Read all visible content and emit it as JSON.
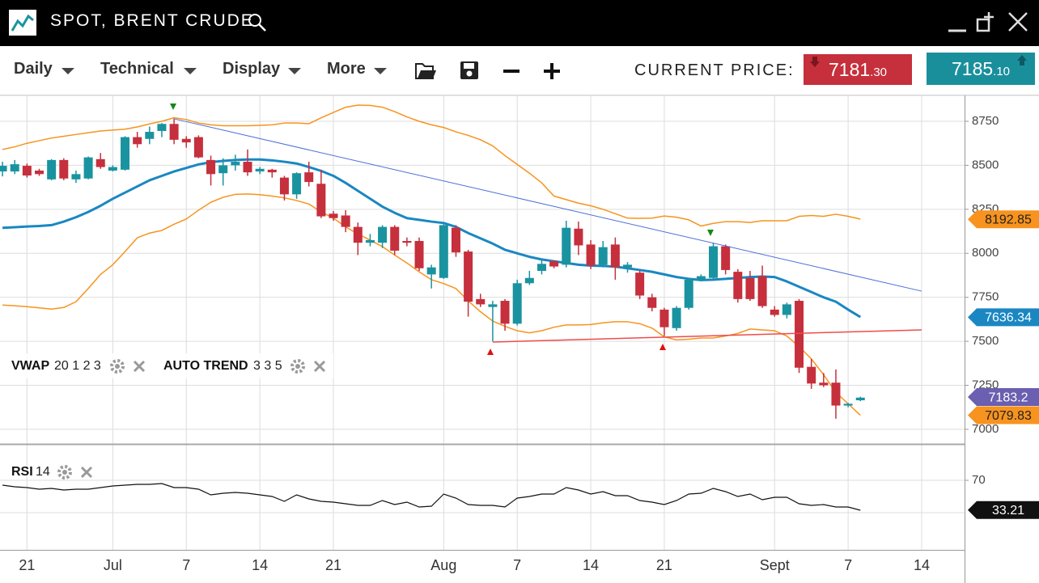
{
  "header": {
    "title": "SPOT, BRENT CRUDE"
  },
  "toolbar": {
    "menus": [
      "Daily",
      "Technical",
      "Display",
      "More"
    ],
    "current_price_label": "CURRENT PRICE:",
    "bid": {
      "integer": "7181",
      "decimal": ".30"
    },
    "ask": {
      "integer": "7185",
      "decimal": ".10"
    }
  },
  "chart_data": [
    {
      "type": "candlestick",
      "categories": [
        null,
        null,
        "21",
        null,
        null,
        null,
        null,
        null,
        null,
        "Jul",
        null,
        null,
        null,
        null,
        null,
        "7",
        null,
        null,
        null,
        null,
        null,
        "14",
        null,
        null,
        null,
        null,
        null,
        "21",
        null,
        null,
        null,
        null,
        null,
        null,
        null,
        null,
        "Aug",
        null,
        null,
        null,
        null,
        null,
        "7",
        null,
        null,
        null,
        null,
        null,
        "14",
        null,
        null,
        null,
        null,
        null,
        "21",
        null,
        null,
        null,
        null,
        null,
        null,
        null,
        null,
        "Sept",
        null,
        null,
        null,
        null,
        null,
        "7",
        null,
        null,
        null,
        null,
        null,
        "14",
        null,
        null,
        null
      ],
      "open": [
        8465,
        8465,
        8497,
        8470,
        8420,
        8530,
        8420,
        8425,
        8535,
        8470,
        8475,
        8660,
        8650,
        8695,
        8735,
        8650,
        8660,
        8530,
        8455,
        8500,
        8520,
        8465,
        8475,
        8430,
        8335,
        8460,
        8395,
        8225,
        8215,
        8150,
        8060,
        8060,
        8150,
        8070,
        8070,
        7880,
        7860,
        8145,
        8010,
        7740,
        7695,
        7730,
        7600,
        7830,
        7900,
        7955,
        7935,
        8140,
        8050,
        7935,
        8050,
        7920,
        7890,
        7750,
        7680,
        7575,
        7690,
        7850,
        7860,
        8040,
        7895,
        7860,
        7870,
        7680,
        7650,
        7730,
        7355,
        7265,
        7265,
        7135,
        7165,
        null,
        null,
        null,
        null,
        null,
        null,
        null,
        null
      ],
      "high": [
        8520,
        8530,
        8510,
        8480,
        8535,
        8540,
        8470,
        8550,
        8570,
        8500,
        8665,
        8690,
        8720,
        8740,
        8765,
        8665,
        8670,
        8555,
        8540,
        8560,
        8590,
        8490,
        8480,
        8440,
        8460,
        8520,
        8475,
        8240,
        8245,
        8175,
        8110,
        8160,
        8160,
        8090,
        8090,
        7935,
        8165,
        8160,
        8020,
        7770,
        7730,
        7740,
        7850,
        7900,
        7960,
        7960,
        8185,
        8180,
        8075,
        8070,
        8090,
        7950,
        7900,
        7770,
        7690,
        7700,
        7860,
        7880,
        8060,
        8050,
        7910,
        7900,
        7930,
        7700,
        7720,
        7740,
        7400,
        7320,
        7340,
        7150,
        7185,
        null,
        null,
        null,
        null,
        null,
        null,
        null,
        null
      ],
      "low": [
        8437,
        8450,
        8430,
        8440,
        8415,
        8415,
        8400,
        8420,
        8480,
        8465,
        8470,
        8600,
        8620,
        8660,
        8620,
        8600,
        8540,
        8385,
        8385,
        8470,
        8440,
        8450,
        8430,
        8300,
        8310,
        8380,
        8200,
        8185,
        8120,
        7990,
        8040,
        8030,
        7990,
        8040,
        7900,
        7800,
        7855,
        7980,
        7640,
        7695,
        7500,
        7560,
        7590,
        7820,
        7880,
        7915,
        7920,
        7990,
        7910,
        7920,
        7850,
        7890,
        7740,
        7670,
        7530,
        7560,
        7680,
        7840,
        7850,
        7880,
        7720,
        7730,
        7690,
        7640,
        7630,
        7320,
        7230,
        7240,
        7060,
        7125,
        7160,
        null,
        null,
        null,
        null,
        null,
        null,
        null,
        null
      ],
      "close": [
        8497,
        8506,
        8442,
        8450,
        8530,
        8425,
        8450,
        8545,
        8490,
        8490,
        8660,
        8620,
        8690,
        8735,
        8645,
        8630,
        8545,
        8450,
        8500,
        8520,
        8460,
        8480,
        8460,
        8335,
        8455,
        8405,
        8210,
        8200,
        8150,
        8060,
        8075,
        8150,
        8015,
        8060,
        7915,
        7920,
        8160,
        8005,
        7725,
        7710,
        7710,
        7600,
        7830,
        7860,
        7940,
        7925,
        8145,
        8045,
        7930,
        8035,
        7920,
        7935,
        7760,
        7690,
        7580,
        7690,
        7850,
        7870,
        8040,
        7905,
        7740,
        7740,
        7700,
        7650,
        7710,
        7350,
        7260,
        7250,
        7135,
        7145,
        7180,
        null,
        null,
        null,
        null,
        null,
        null,
        null,
        null
      ],
      "up_color": "#1a93a0",
      "down_color": "#c62f3c",
      "series": [
        {
          "color": "#1a87c2",
          "width": 3,
          "values": [
            8145,
            8148,
            8152,
            8155,
            8160,
            8180,
            8205,
            8235,
            8270,
            8310,
            8345,
            8380,
            8415,
            8440,
            8465,
            8485,
            8505,
            8518,
            8525,
            8530,
            8533,
            8533,
            8528,
            8520,
            8510,
            8490,
            8468,
            8440,
            8400,
            8355,
            8310,
            8265,
            8230,
            8200,
            8190,
            8180,
            8172,
            8150,
            8115,
            8085,
            8055,
            8020,
            8000,
            7980,
            7965,
            7955,
            7945,
            7935,
            7930,
            7928,
            7924,
            7915,
            7905,
            7895,
            7880,
            7865,
            7855,
            7848,
            7850,
            7855,
            7860,
            7865,
            7868,
            7865,
            7840,
            7810,
            7780,
            7750,
            7725,
            7680,
            7638,
            null,
            null,
            null,
            null,
            null,
            null,
            null,
            null
          ]
        },
        {
          "color": "#f7931e",
          "width": 1.5,
          "values": [
            8590,
            8605,
            8625,
            8640,
            8655,
            8665,
            8675,
            8685,
            8695,
            8700,
            8705,
            8718,
            8735,
            8750,
            8770,
            8760,
            8740,
            8730,
            8725,
            8725,
            8725,
            8727,
            8730,
            8740,
            8740,
            8736,
            8770,
            8800,
            8830,
            8842,
            8840,
            8830,
            8805,
            8775,
            8750,
            8730,
            8715,
            8690,
            8670,
            8645,
            8610,
            8555,
            8505,
            8455,
            8400,
            8325,
            8305,
            8285,
            8270,
            8250,
            8225,
            8200,
            8199,
            8200,
            8212,
            8205,
            8190,
            8155,
            8170,
            8180,
            8180,
            8175,
            8185,
            8185,
            8185,
            8210,
            8215,
            8210,
            8222,
            8210,
            8194,
            null,
            null,
            null,
            null,
            null,
            null,
            null,
            null
          ]
        },
        {
          "color": "#f7931e",
          "width": 1.5,
          "values": [
            7706,
            7702,
            7697,
            7690,
            7683,
            7692,
            7725,
            7800,
            7880,
            7935,
            8010,
            8088,
            8115,
            8130,
            8165,
            8195,
            8245,
            8290,
            8318,
            8335,
            8337,
            8333,
            8325,
            8315,
            8300,
            8280,
            8235,
            8200,
            8150,
            8110,
            8075,
            8038,
            7990,
            7945,
            7895,
            7850,
            7828,
            7800,
            7730,
            7668,
            7615,
            7585,
            7560,
            7548,
            7560,
            7580,
            7593,
            7593,
            7595,
            7605,
            7611,
            7611,
            7600,
            7575,
            7525,
            7508,
            7512,
            7519,
            7519,
            7530,
            7545,
            7570,
            7565,
            7560,
            7530,
            7470,
            7400,
            7310,
            7210,
            7145,
            7080,
            null,
            null,
            null,
            null,
            null,
            null,
            null,
            null
          ]
        }
      ],
      "trendlines": [
        {
          "color": "#4a6fd8",
          "width": 1,
          "connect_gaps": true,
          "values": [
            null,
            null,
            null,
            null,
            null,
            null,
            null,
            null,
            null,
            null,
            null,
            null,
            null,
            null,
            8764,
            null,
            null,
            null,
            null,
            null,
            null,
            null,
            null,
            null,
            null,
            null,
            null,
            null,
            null,
            null,
            null,
            null,
            null,
            null,
            null,
            null,
            null,
            null,
            null,
            null,
            null,
            null,
            null,
            null,
            null,
            null,
            null,
            null,
            null,
            null,
            null,
            null,
            null,
            null,
            null,
            null,
            null,
            null,
            null,
            null,
            null,
            null,
            null,
            null,
            null,
            null,
            null,
            null,
            null,
            null,
            null,
            null,
            null,
            null,
            null,
            7785,
            null,
            null,
            null
          ]
        },
        {
          "color": "#ef4b4b",
          "width": 1.5,
          "connect_gaps": true,
          "values": [
            null,
            null,
            null,
            null,
            null,
            null,
            null,
            null,
            null,
            null,
            null,
            null,
            null,
            null,
            null,
            null,
            null,
            null,
            null,
            null,
            null,
            null,
            null,
            null,
            null,
            null,
            null,
            null,
            null,
            null,
            null,
            null,
            null,
            null,
            null,
            null,
            null,
            null,
            null,
            null,
            7496,
            null,
            null,
            null,
            null,
            null,
            null,
            null,
            null,
            null,
            null,
            null,
            null,
            null,
            null,
            null,
            null,
            null,
            null,
            null,
            null,
            null,
            null,
            null,
            null,
            null,
            null,
            null,
            null,
            null,
            null,
            null,
            null,
            null,
            null,
            7565,
            null,
            null,
            null
          ]
        }
      ],
      "price_tags": [
        {
          "value": 8192.85,
          "color": "#f7931e",
          "text_color": "#222"
        },
        {
          "value": 7636.34,
          "color": "#1a87c2",
          "text_color": "#fff"
        },
        {
          "value": 7183.2,
          "color": "#6a5fb0",
          "text_color": "#fff"
        },
        {
          "value": 7079.83,
          "color": "#f7931e",
          "text_color": "#222"
        }
      ],
      "indicators": [
        {
          "name": "VWAP",
          "params": "20 1 2 3"
        },
        {
          "name": "AUTO TREND",
          "params": "3 3 5"
        }
      ],
      "ylim": [
        6917,
        8897
      ],
      "yticks": [
        8750,
        8500,
        8250,
        8000,
        7750,
        7500,
        7250,
        7000
      ],
      "grid": true
    },
    {
      "type": "line",
      "indicator": {
        "name": "RSI",
        "params": "14"
      },
      "color": "#111",
      "values": [
        64,
        62,
        61,
        59,
        60,
        58,
        59,
        59,
        61,
        63,
        64,
        65,
        65,
        66,
        61,
        61,
        59,
        52,
        54,
        55,
        54,
        52,
        50,
        44,
        52,
        47,
        44,
        43,
        41,
        39,
        39,
        45,
        40,
        43,
        37,
        38,
        53,
        48,
        40,
        39,
        39,
        37,
        48,
        50,
        53,
        53,
        61,
        58,
        53,
        56,
        51,
        51,
        45,
        43,
        40,
        45,
        53,
        54,
        60,
        56,
        50,
        53,
        46,
        49,
        49,
        41,
        39,
        40,
        37,
        37,
        33,
        null,
        null,
        null,
        null,
        null,
        null,
        null,
        null
      ],
      "price_tags": [
        {
          "value": 33.21,
          "color": "#111",
          "text_color": "#fff"
        }
      ],
      "ylim": [
        -16,
        113
      ],
      "yticks": [
        70
      ],
      "oversold": 30,
      "grid": true
    }
  ]
}
